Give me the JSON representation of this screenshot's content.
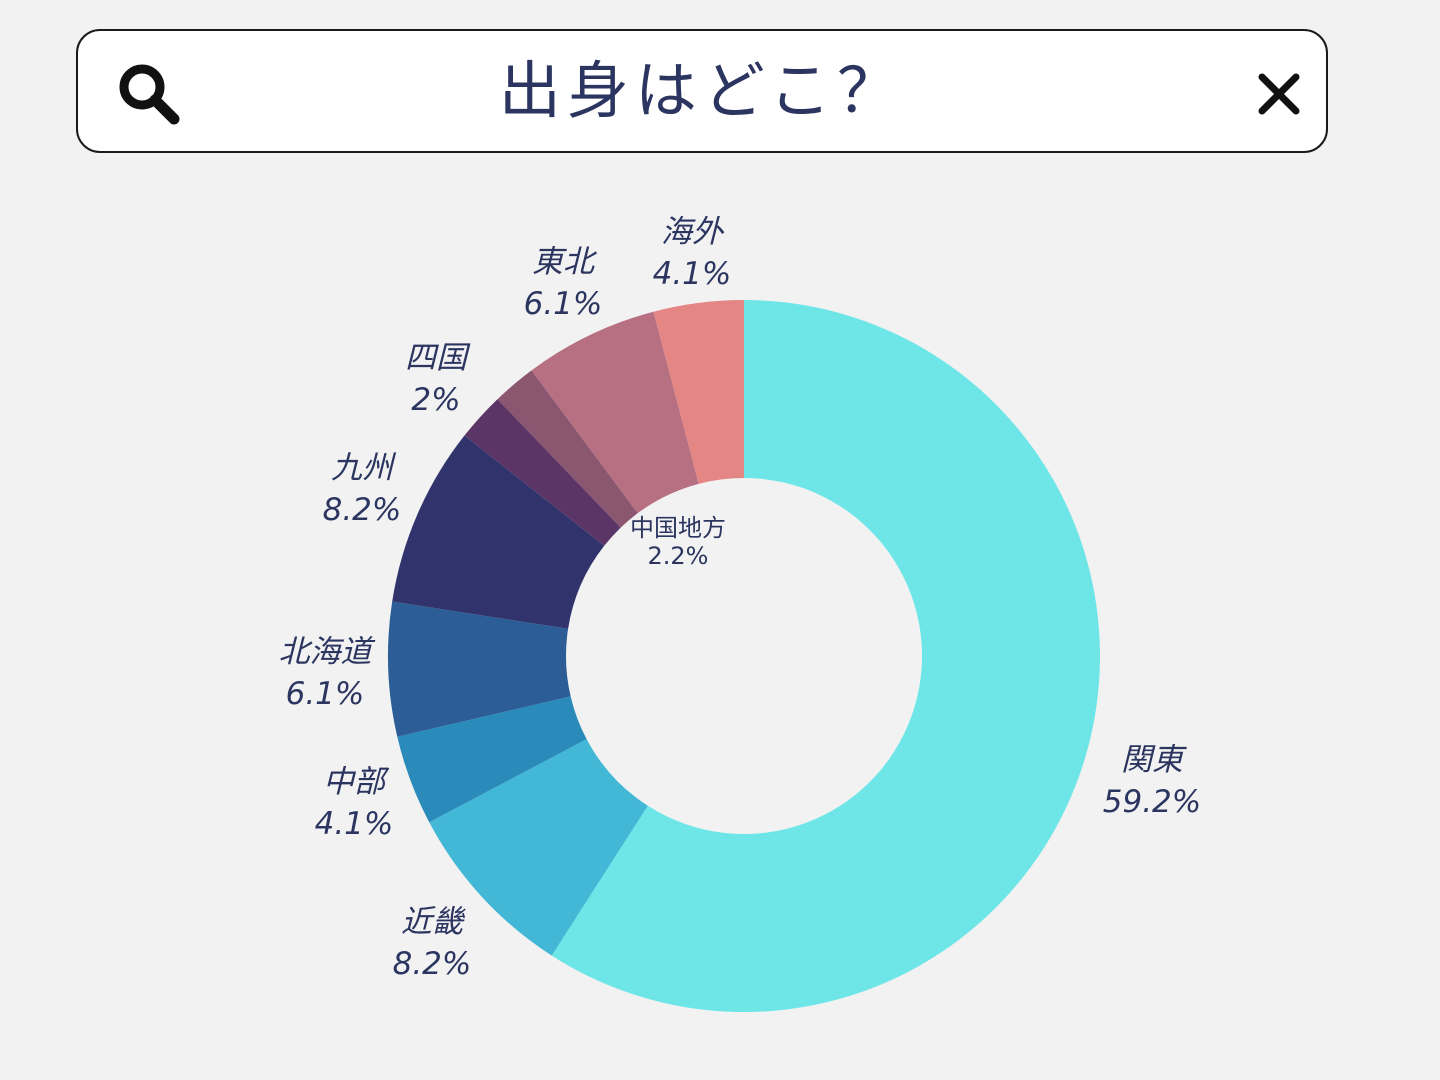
{
  "search": {
    "title": "出身はどこ？",
    "left_icon": "search-icon",
    "right_icon": "close-icon"
  },
  "chart_data": {
    "type": "pie",
    "donut": true,
    "direction": "clockwise",
    "start": "top",
    "slices": [
      {
        "label": "関東",
        "value": 59.2,
        "display": "59.2%",
        "color": "#6ee6e8"
      },
      {
        "label": "近畿",
        "value": 8.2,
        "display": "8.2%",
        "color": "#42b8d6"
      },
      {
        "label": "中部",
        "value": 4.1,
        "display": "4.1%",
        "color": "#2a8bbb"
      },
      {
        "label": "北海道",
        "value": 6.1,
        "display": "6.1%",
        "color": "#2c5d96"
      },
      {
        "label": "九州",
        "value": 8.2,
        "display": "8.2%",
        "color": "#30336c"
      },
      {
        "label": "中国地方",
        "value": 2.2,
        "display": "2.2%",
        "color": "#5b3566"
      },
      {
        "label": "四国",
        "value": 2.0,
        "display": "2%",
        "color": "#8b5670"
      },
      {
        "label": "東北",
        "value": 6.1,
        "display": "6.1%",
        "color": "#b77081"
      },
      {
        "label": "海外",
        "value": 4.1,
        "display": "4.1%",
        "color": "#e38684"
      }
    ]
  }
}
